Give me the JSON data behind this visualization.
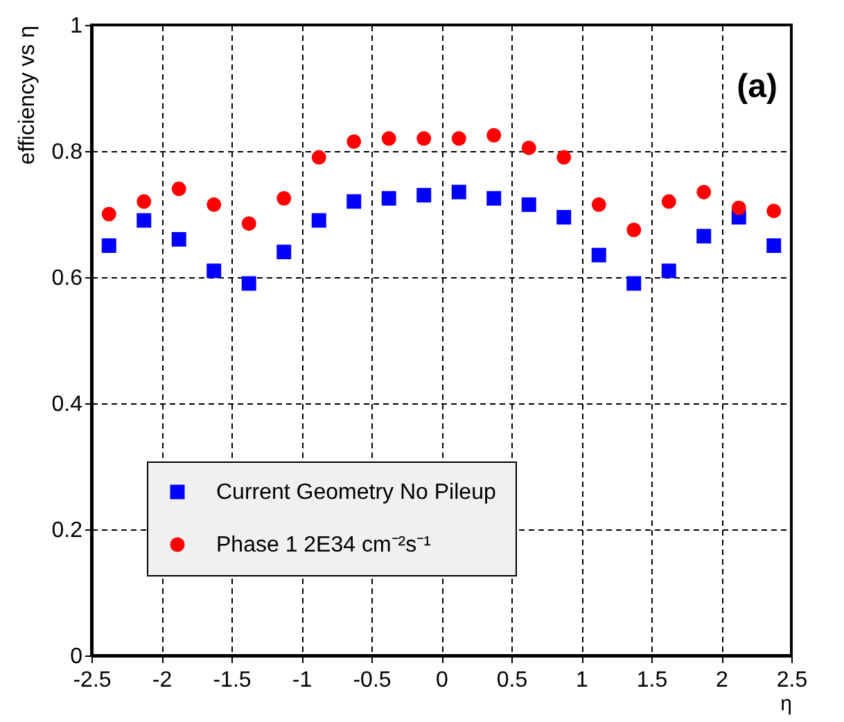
{
  "chart_data": {
    "type": "scatter",
    "xlabel": "η",
    "ylabel": "efficiency vs η",
    "annotations": [
      "(a)"
    ],
    "x": [
      -2.375,
      -2.125,
      -1.875,
      -1.625,
      -1.375,
      -1.125,
      -0.875,
      -0.625,
      -0.375,
      -0.125,
      0.125,
      0.375,
      0.625,
      0.875,
      1.125,
      1.375,
      1.625,
      1.875,
      2.125,
      2.375
    ],
    "series": [
      {
        "name": "Current Geometry No Pileup",
        "color": "#0000ff",
        "marker": "square",
        "values": [
          0.65,
          0.69,
          0.66,
          0.61,
          0.59,
          0.64,
          0.69,
          0.72,
          0.725,
          0.73,
          0.735,
          0.725,
          0.715,
          0.695,
          0.635,
          0.59,
          0.61,
          0.665,
          0.695,
          0.65
        ]
      },
      {
        "name": "Phase 1 2E34 cm⁻²s⁻¹",
        "color": "#ff0000",
        "marker": "circle",
        "values": [
          0.7,
          0.72,
          0.74,
          0.715,
          0.685,
          0.725,
          0.79,
          0.815,
          0.82,
          0.82,
          0.82,
          0.825,
          0.805,
          0.79,
          0.715,
          0.675,
          0.72,
          0.735,
          0.71,
          0.705
        ]
      }
    ],
    "xlim": [
      -2.5,
      2.5
    ],
    "xticks": [
      -2.5,
      -2,
      -1.5,
      -1,
      -0.5,
      0,
      0.5,
      1,
      1.5,
      2,
      2.5
    ],
    "ylim": [
      0,
      1
    ],
    "yticks": [
      0,
      0.2,
      0.4,
      0.6,
      0.8,
      1
    ],
    "grid": true,
    "legend": "bottom"
  }
}
